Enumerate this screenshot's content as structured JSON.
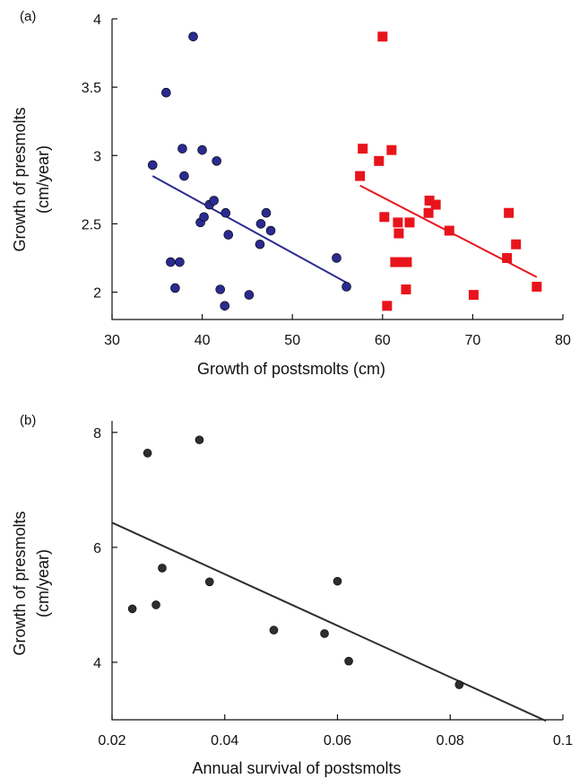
{
  "chart_data": [
    {
      "panel_label": "(a)",
      "type": "scatter",
      "xlabel": "Growth of postsmolts (cm)",
      "ylabel_line1": "Growth of presmolts",
      "ylabel_line2": "(cm/year)",
      "xlim": [
        30,
        80
      ],
      "ylim": [
        1.8,
        4
      ],
      "xticks": [
        30,
        40,
        50,
        60,
        70,
        80
      ],
      "yticks": [
        2,
        2.5,
        3,
        3.5,
        4
      ],
      "xtick_labels": [
        "30",
        "40",
        "50",
        "60",
        "70",
        "80"
      ],
      "ytick_labels": [
        "2",
        "2.5",
        "3",
        "3.5",
        "4"
      ],
      "series": [
        {
          "marker": "circle",
          "color": "#2a2a90",
          "points": [
            [
              34.5,
              2.93
            ],
            [
              36.0,
              3.46
            ],
            [
              36.5,
              2.22
            ],
            [
              37.0,
              2.03
            ],
            [
              37.5,
              2.22
            ],
            [
              37.8,
              3.05
            ],
            [
              38.0,
              2.85
            ],
            [
              39.0,
              3.87
            ],
            [
              39.8,
              2.51
            ],
            [
              40.0,
              3.04
            ],
            [
              40.2,
              2.55
            ],
            [
              40.8,
              2.64
            ],
            [
              41.3,
              2.67
            ],
            [
              41.6,
              2.96
            ],
            [
              42.0,
              2.02
            ],
            [
              42.5,
              1.9
            ],
            [
              42.6,
              2.58
            ],
            [
              42.9,
              2.42
            ],
            [
              45.2,
              1.98
            ],
            [
              46.4,
              2.35
            ],
            [
              46.5,
              2.5
            ],
            [
              47.1,
              2.58
            ],
            [
              47.6,
              2.45
            ],
            [
              54.9,
              2.25
            ],
            [
              56.0,
              2.04
            ]
          ],
          "fit": [
            [
              34.5,
              2.85
            ],
            [
              56.0,
              2.07
            ]
          ]
        },
        {
          "marker": "square",
          "color": "#e8141c",
          "points": [
            [
              57.5,
              2.85
            ],
            [
              57.8,
              3.05
            ],
            [
              59.6,
              2.96
            ],
            [
              60.0,
              3.87
            ],
            [
              60.2,
              2.55
            ],
            [
              60.5,
              1.9
            ],
            [
              61.0,
              3.04
            ],
            [
              61.4,
              2.22
            ],
            [
              61.7,
              2.51
            ],
            [
              61.8,
              2.43
            ],
            [
              62.0,
              2.22
            ],
            [
              62.6,
              2.02
            ],
            [
              62.7,
              2.22
            ],
            [
              63.0,
              2.51
            ],
            [
              65.1,
              2.58
            ],
            [
              65.2,
              2.67
            ],
            [
              65.9,
              2.64
            ],
            [
              67.4,
              2.45
            ],
            [
              70.1,
              1.98
            ],
            [
              73.8,
              2.25
            ],
            [
              74.0,
              2.58
            ],
            [
              74.8,
              2.35
            ],
            [
              77.1,
              2.04
            ]
          ],
          "fit": [
            [
              57.5,
              2.78
            ],
            [
              77.1,
              2.11
            ]
          ]
        }
      ]
    },
    {
      "panel_label": "(b)",
      "type": "scatter",
      "xlabel": "Annual survival of postsmolts",
      "ylabel_line1": "Growth of presmolts",
      "ylabel_line2": "(cm/year)",
      "xlim": [
        0.02,
        0.1
      ],
      "ylim": [
        3,
        8.2
      ],
      "xticks": [
        0.02,
        0.04,
        0.06,
        0.08,
        0.1
      ],
      "yticks": [
        4,
        6,
        8
      ],
      "xtick_labels": [
        "0.02",
        "0.04",
        "0.06",
        "0.08",
        "0.1"
      ],
      "ytick_labels": [
        "4",
        "6",
        "8"
      ],
      "series": [
        {
          "marker": "circle",
          "color": "#2e2e2e",
          "points": [
            [
              0.0236,
              4.93
            ],
            [
              0.0263,
              7.64
            ],
            [
              0.0278,
              5.0
            ],
            [
              0.0289,
              5.64
            ],
            [
              0.0355,
              7.87
            ],
            [
              0.0373,
              5.4
            ],
            [
              0.0487,
              4.56
            ],
            [
              0.0577,
              4.5
            ],
            [
              0.06,
              5.41
            ],
            [
              0.062,
              4.02
            ],
            [
              0.0816,
              3.61
            ]
          ],
          "fit": [
            [
              0.02,
              6.43
            ],
            [
              0.097,
              2.98
            ]
          ]
        }
      ]
    }
  ]
}
